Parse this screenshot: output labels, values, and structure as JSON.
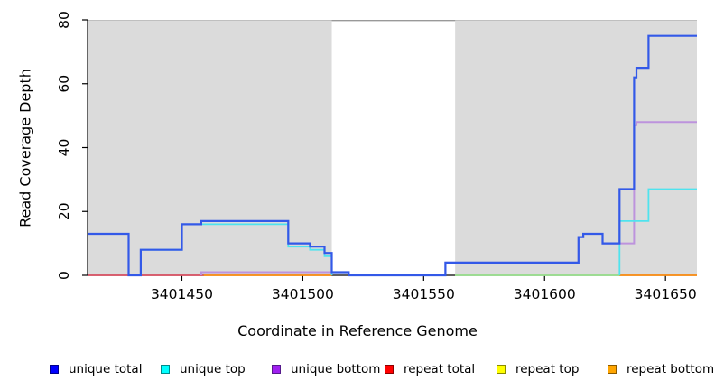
{
  "chart_data": {
    "type": "line",
    "subtype": "step-coverage-plot",
    "title": "",
    "xlabel": "Coordinate in Reference Genome",
    "ylabel": "Read Coverage Depth",
    "xlim": [
      3401411,
      3401663
    ],
    "ylim": [
      0,
      80
    ],
    "x_ticks": {
      "values": [
        3401450,
        3401500,
        3401550,
        3401600,
        3401650
      ],
      "labels": [
        "3401450",
        "3401500",
        "3401550",
        "3401600",
        "3401650"
      ]
    },
    "y_ticks": {
      "values": [
        0,
        20,
        40,
        60,
        80
      ],
      "labels": [
        "0",
        "20",
        "40",
        "60",
        "80"
      ]
    },
    "grid": false,
    "plot_bg": "#DBDBDB",
    "masked_region": {
      "from": 3401512,
      "to": 3401563,
      "fill": "#FFFFFF",
      "border": "#999999"
    },
    "legend_position": "bottom-row",
    "draw_order": [
      "repeat_total",
      "repeat_top",
      "repeat_bottom",
      "unique_bottom",
      "unique_top",
      "unique_total"
    ],
    "series": [
      {
        "id": "unique_total",
        "label": "unique total",
        "legend_fill": "#0000FF",
        "legend_border": "#00008B",
        "line_color": "#3359E8",
        "line_width": 2.2,
        "segments": [
          {
            "pts": [
              [
                3401411,
                13
              ],
              [
                3401428,
                0
              ],
              [
                3401433,
                8
              ],
              [
                3401450,
                16
              ],
              [
                3401458,
                17
              ],
              [
                3401494,
                10
              ],
              [
                3401503,
                9
              ],
              [
                3401509,
                7
              ],
              [
                3401512,
                1
              ],
              [
                3401519,
                0
              ],
              [
                3401559,
                4
              ],
              [
                3401614,
                12
              ],
              [
                3401616,
                13
              ],
              [
                3401624,
                10
              ],
              [
                3401631,
                27
              ],
              [
                3401637,
                62
              ],
              [
                3401638,
                65
              ],
              [
                3401643,
                75
              ],
              [
                3401663,
                75
              ]
            ]
          }
        ]
      },
      {
        "id": "unique_top",
        "label": "unique top",
        "legend_fill": "#00FFFF",
        "legend_border": "#008B8B",
        "line_color": "#4FE3EE",
        "line_width": 1.8,
        "segments": [
          {
            "pts": [
              [
                3401411,
                13
              ],
              [
                3401428,
                0
              ],
              [
                3401433,
                8
              ],
              [
                3401450,
                16
              ],
              [
                3401494,
                9
              ],
              [
                3401503,
                8
              ],
              [
                3401509,
                6
              ],
              [
                3401512,
                0
              ]
            ]
          },
          {
            "pts": [
              [
                3401563,
                0
              ],
              [
                3401631,
                0
              ]
            ],
            "color": "#96DE96",
            "note": "depth 0, overlaps repeat top (yellow) giving green tint"
          },
          {
            "pts": [
              [
                3401631,
                0
              ],
              [
                3401631,
                17
              ],
              [
                3401643,
                27
              ],
              [
                3401663,
                27
              ]
            ]
          }
        ]
      },
      {
        "id": "unique_bottom",
        "label": "unique bottom",
        "legend_fill": "#A020F0",
        "legend_border": "#551A8B",
        "line_color": "#BD93DD",
        "line_width": 2,
        "segments": [
          {
            "pts": [
              [
                3401458,
                0
              ],
              [
                3401458,
                1
              ],
              [
                3401519,
                0
              ],
              [
                3401559,
                4
              ],
              [
                3401614,
                12
              ],
              [
                3401616,
                13
              ],
              [
                3401624,
                10
              ],
              [
                3401637,
                47
              ],
              [
                3401638,
                48
              ],
              [
                3401663,
                48
              ]
            ]
          }
        ]
      },
      {
        "id": "repeat_total",
        "label": "repeat total",
        "legend_fill": "#FF0000",
        "legend_border": "#8B0000",
        "line_color": "#DD5566",
        "line_width": 1.7,
        "segments": [
          {
            "pts": [
              [
                3401411,
                0
              ],
              [
                3401459,
                0
              ]
            ]
          }
        ]
      },
      {
        "id": "repeat_top",
        "label": "repeat top",
        "legend_fill": "#FFFF00",
        "legend_border": "#8B8B00",
        "line_color": "#E8E84A",
        "line_width": 1.6,
        "segments": [
          {
            "pts": [
              [
                3401563,
                0
              ],
              [
                3401631,
                0
              ]
            ]
          }
        ]
      },
      {
        "id": "repeat_bottom",
        "label": "repeat bottom",
        "legend_fill": "#FFA500",
        "legend_border": "#8B5A00",
        "line_color": "#FF9015",
        "line_width": 1.8,
        "segments": [
          {
            "pts": [
              [
                3401459,
                0
              ],
              [
                3401512,
                0
              ]
            ]
          },
          {
            "pts": [
              [
                3401631,
                0
              ],
              [
                3401663,
                0
              ]
            ]
          }
        ]
      }
    ]
  }
}
